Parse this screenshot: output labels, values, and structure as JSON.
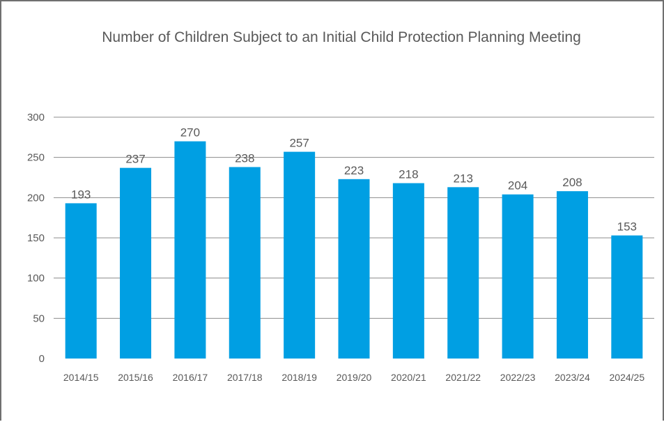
{
  "chart_data": {
    "type": "bar",
    "title": "Number of Children Subject to an Initial Child Protection Planning Meeting",
    "categories": [
      "2014/15",
      "2015/16",
      "2016/17",
      "2017/18",
      "2018/19",
      "2019/20",
      "2020/21",
      "2021/22",
      "2022/23",
      "2023/24",
      "2024/25"
    ],
    "values": [
      193,
      237,
      270,
      238,
      257,
      223,
      218,
      213,
      204,
      208,
      153
    ],
    "xlabel": "",
    "ylabel": "",
    "ylim": [
      0,
      300
    ],
    "yticks": [
      0,
      50,
      100,
      150,
      200,
      250,
      300
    ],
    "grid": true,
    "legend": "none",
    "bar_color": "#009fe3"
  }
}
